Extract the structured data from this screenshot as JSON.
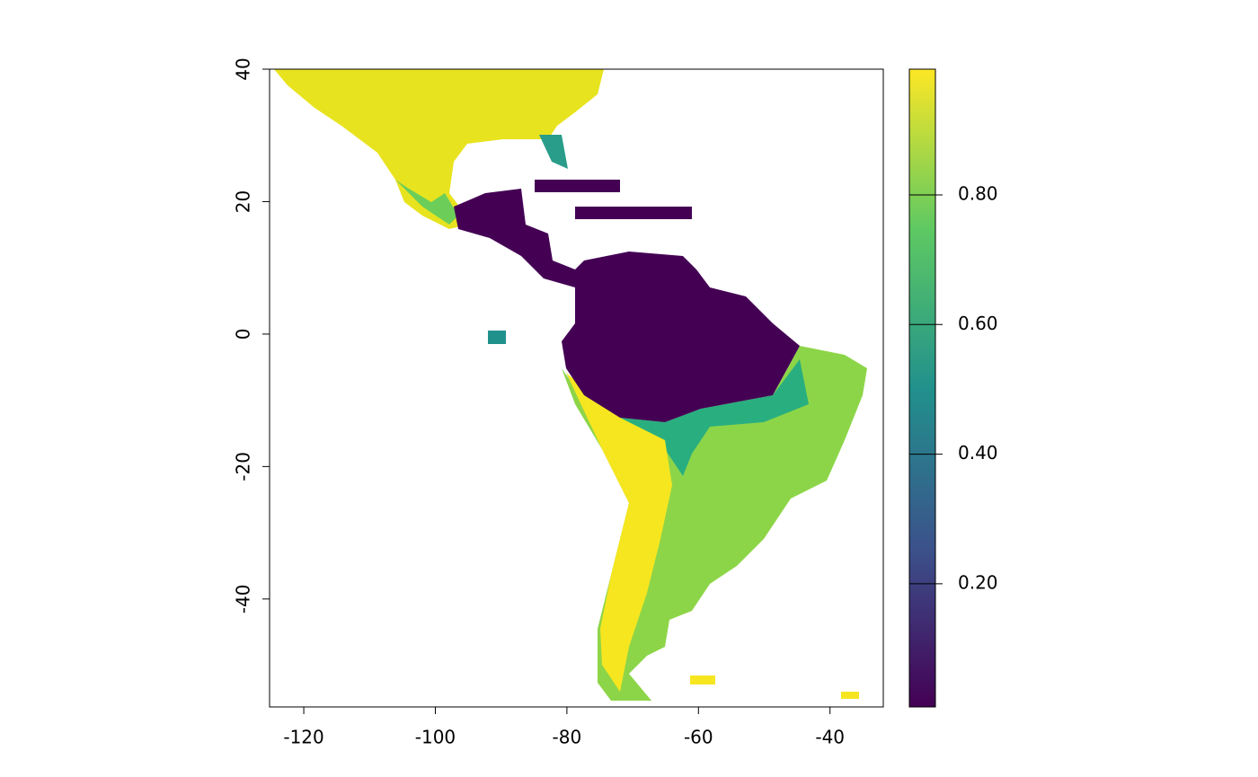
{
  "chart_data": {
    "type": "raster-map",
    "xlim": [
      -125.2,
      -31.9
    ],
    "ylim": [
      -56.3,
      40
    ],
    "xticks": [
      -120,
      -100,
      -80,
      -60,
      -40
    ],
    "yticks": [
      40,
      20,
      0,
      -20,
      -40
    ],
    "colorbar": {
      "lim": [
        0.01,
        0.994
      ],
      "ticks": [
        {
          "value": 0.2,
          "label": "0.20"
        },
        {
          "value": 0.4,
          "label": "0.40"
        },
        {
          "value": 0.6,
          "label": "0.60"
        },
        {
          "value": 0.8,
          "label": "0.80"
        }
      ],
      "colormap": [
        "#440154",
        "#3b528b",
        "#21918c",
        "#5ec962",
        "#fde725"
      ]
    }
  }
}
